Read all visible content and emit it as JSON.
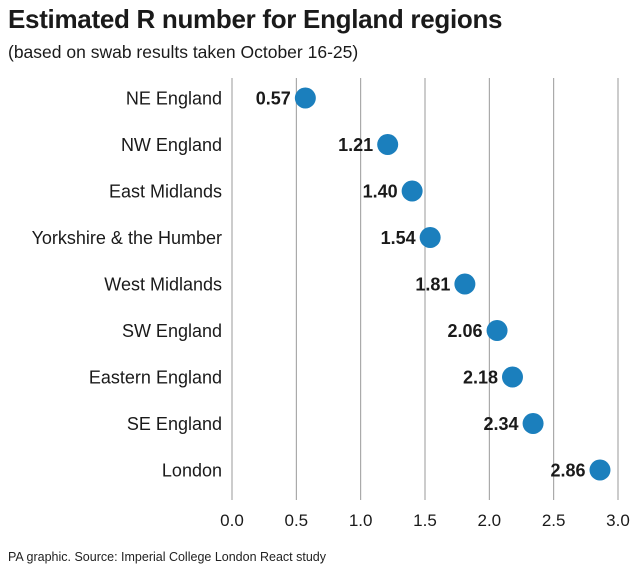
{
  "title": "Estimated R number for England regions",
  "subtitle": "(based on swab results taken October 16-25)",
  "footer": "PA graphic. Source: Imperial College London React study",
  "colors": {
    "dot": "#1b7fbd",
    "grid": "#999999",
    "text": "#1a1a1a"
  },
  "chart_data": {
    "type": "scatter",
    "title": "Estimated R number for England regions",
    "subtitle": "(based on swab results taken October 16-25)",
    "categories": [
      "NE England",
      "NW England",
      "East Midlands",
      "Yorkshire & the Humber",
      "West Midlands",
      "SW England",
      "Eastern England",
      "SE England",
      "London"
    ],
    "values": [
      0.57,
      1.21,
      1.4,
      1.54,
      1.81,
      2.06,
      2.18,
      2.34,
      2.86
    ],
    "value_labels": [
      "0.57",
      "1.21",
      "1.40",
      "1.54",
      "1.81",
      "2.06",
      "2.18",
      "2.34",
      "2.86"
    ],
    "xticks": [
      "0.0",
      "0.5",
      "1.0",
      "1.5",
      "2.0",
      "2.5",
      "3.0"
    ],
    "xlim": [
      0,
      3
    ],
    "grid": "vertical",
    "legend": "none"
  }
}
